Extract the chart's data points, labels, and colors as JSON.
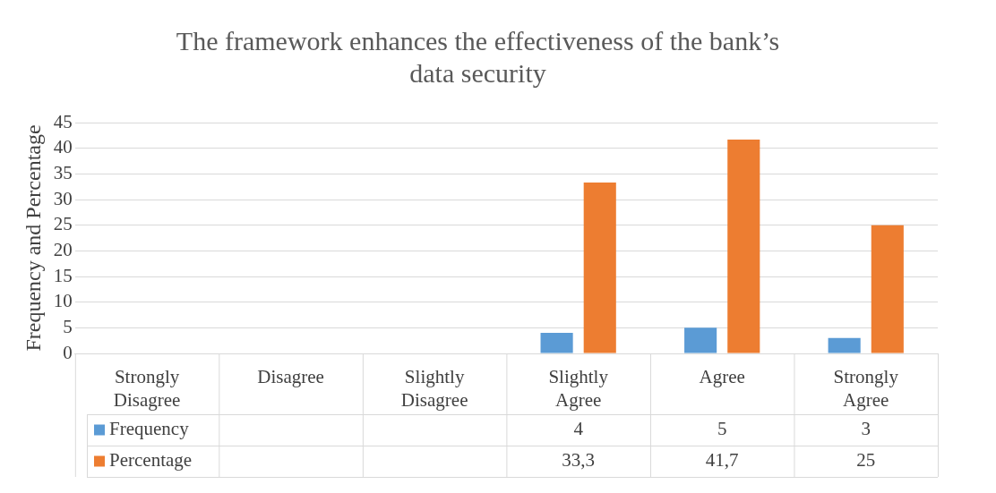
{
  "chart_data": {
    "type": "bar",
    "title": "The framework enhances the effectiveness of the bank’s data security",
    "ylabel": "Frequency and Percentage",
    "categories": [
      "Strongly Disagree",
      "Disagree",
      "Slightly Disagree",
      "Slightly Agree",
      "Agree",
      "Strongly Agree"
    ],
    "series": [
      {
        "name": "Frequency",
        "color": "#5b9bd5",
        "values": [
          null,
          null,
          null,
          4,
          5,
          3
        ],
        "value_labels": [
          null,
          null,
          null,
          "4",
          "5",
          "3"
        ]
      },
      {
        "name": "Percentage",
        "color": "#ed7d31",
        "values": [
          null,
          null,
          null,
          33.3,
          41.7,
          25
        ],
        "value_labels": [
          null,
          null,
          null,
          "33,3",
          "41,7",
          "25"
        ]
      }
    ],
    "ylim": [
      0,
      45
    ],
    "yticks": [
      0,
      5,
      10,
      15,
      20,
      25,
      30,
      35,
      40,
      45
    ],
    "grid": "y",
    "legend": "bottom"
  }
}
